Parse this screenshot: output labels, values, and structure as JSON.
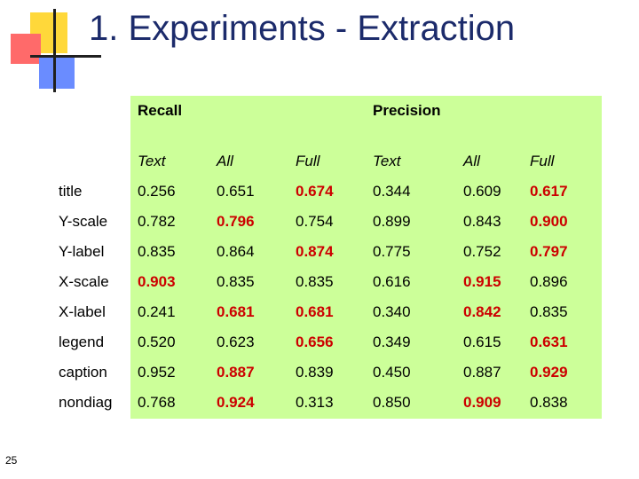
{
  "slide": {
    "title": "1. Experiments - Extraction",
    "page_number": "25"
  },
  "table": {
    "groups": [
      "Recall",
      "Precision"
    ],
    "subheaders": [
      "Text",
      "All",
      "Full",
      "Text",
      "All",
      "Full"
    ],
    "rows": [
      {
        "label": "title",
        "values": [
          "0.256",
          "0.651",
          "0.674",
          "0.344",
          "0.609",
          "0.617"
        ],
        "highlight": [
          false,
          false,
          true,
          false,
          false,
          true
        ]
      },
      {
        "label": "Y-scale",
        "values": [
          "0.782",
          "0.796",
          "0.754",
          "0.899",
          "0.843",
          "0.900"
        ],
        "highlight": [
          false,
          true,
          false,
          false,
          false,
          true
        ]
      },
      {
        "label": "Y-label",
        "values": [
          "0.835",
          "0.864",
          "0.874",
          "0.775",
          "0.752",
          "0.797"
        ],
        "highlight": [
          false,
          false,
          true,
          false,
          false,
          true
        ]
      },
      {
        "label": "X-scale",
        "values": [
          "0.903",
          "0.835",
          "0.835",
          "0.616",
          "0.915",
          "0.896"
        ],
        "highlight": [
          true,
          false,
          false,
          false,
          true,
          false
        ]
      },
      {
        "label": "X-label",
        "values": [
          "0.241",
          "0.681",
          "0.681",
          "0.340",
          "0.842",
          "0.835"
        ],
        "highlight": [
          false,
          true,
          true,
          false,
          true,
          false
        ]
      },
      {
        "label": "legend",
        "values": [
          "0.520",
          "0.623",
          "0.656",
          "0.349",
          "0.615",
          "0.631"
        ],
        "highlight": [
          false,
          false,
          true,
          false,
          false,
          true
        ]
      },
      {
        "label": "caption",
        "values": [
          "0.952",
          "0.887",
          "0.839",
          "0.450",
          "0.887",
          "0.929"
        ],
        "highlight": [
          false,
          true,
          false,
          false,
          false,
          true
        ]
      },
      {
        "label": "nondiag",
        "values": [
          "0.768",
          "0.924",
          "0.313",
          "0.850",
          "0.909",
          "0.838"
        ],
        "highlight": [
          false,
          true,
          false,
          false,
          true,
          false
        ]
      }
    ]
  },
  "colors": {
    "title": "#1c2b6b",
    "panel": "#ccff99",
    "highlight": "#cc0000"
  }
}
